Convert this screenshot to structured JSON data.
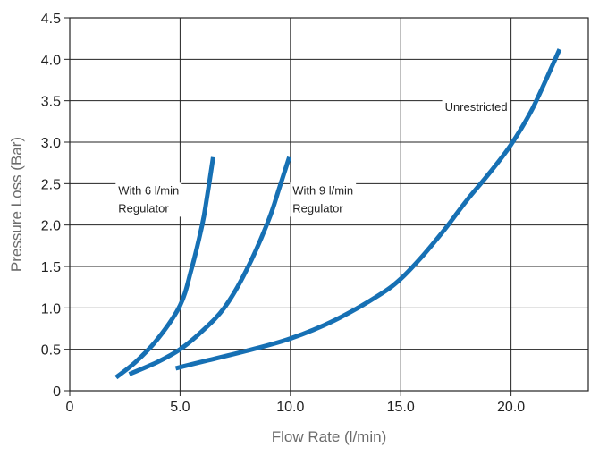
{
  "chart_data": {
    "type": "line",
    "xlabel": "Flow Rate (l/min)",
    "ylabel": "Pressure Loss (Bar)",
    "xlim": [
      0,
      23.5
    ],
    "ylim": [
      0,
      4.5
    ],
    "x_ticks": [
      0,
      5,
      10,
      15,
      20
    ],
    "x_tick_labels": [
      "0",
      "5.0",
      "10.0",
      "15.0",
      "20.0"
    ],
    "y_ticks": [
      0,
      0.5,
      1,
      1.5,
      2,
      2.5,
      3,
      3.5,
      4,
      4.5
    ],
    "y_tick_labels": [
      "0",
      "0.5",
      "1.0",
      "1.5",
      "2.0",
      "2.5",
      "3.0",
      "3.5",
      "4.0",
      "4.5"
    ],
    "grid": true,
    "series_color": "#1670b4",
    "series": [
      {
        "label": "With 6 l/min\nRegulator",
        "points": [
          [
            2.1,
            0.16
          ],
          [
            3.0,
            0.35
          ],
          [
            4.0,
            0.63
          ],
          [
            5.0,
            1.03
          ],
          [
            5.5,
            1.45
          ],
          [
            6.0,
            2.0
          ],
          [
            6.2,
            2.3
          ],
          [
            6.5,
            2.82
          ]
        ]
      },
      {
        "label": "With 9 l/min\nRegulator",
        "points": [
          [
            2.7,
            0.2
          ],
          [
            4.0,
            0.35
          ],
          [
            5.0,
            0.5
          ],
          [
            6.0,
            0.72
          ],
          [
            7.0,
            1.0
          ],
          [
            8.0,
            1.45
          ],
          [
            9.0,
            2.05
          ],
          [
            9.5,
            2.45
          ],
          [
            9.95,
            2.82
          ]
        ]
      },
      {
        "label": "Unrestricted",
        "points": [
          [
            4.8,
            0.27
          ],
          [
            6.0,
            0.35
          ],
          [
            8.0,
            0.48
          ],
          [
            10.0,
            0.63
          ],
          [
            12.0,
            0.85
          ],
          [
            14.0,
            1.15
          ],
          [
            15.0,
            1.35
          ],
          [
            16.0,
            1.63
          ],
          [
            17.0,
            1.95
          ],
          [
            18.0,
            2.3
          ],
          [
            19.0,
            2.62
          ],
          [
            20.0,
            2.97
          ],
          [
            21.0,
            3.42
          ],
          [
            22.2,
            4.12
          ]
        ]
      }
    ],
    "annotations": [
      {
        "text": [
          "With 6 l/min",
          "Regulator"
        ],
        "x": 2.2,
        "y": 2.37
      },
      {
        "text": [
          "With 9 l/min",
          "Regulator"
        ],
        "x": 10.1,
        "y": 2.37
      },
      {
        "text": [
          "Unrestricted"
        ],
        "x": 17.0,
        "y": 3.38
      }
    ]
  }
}
